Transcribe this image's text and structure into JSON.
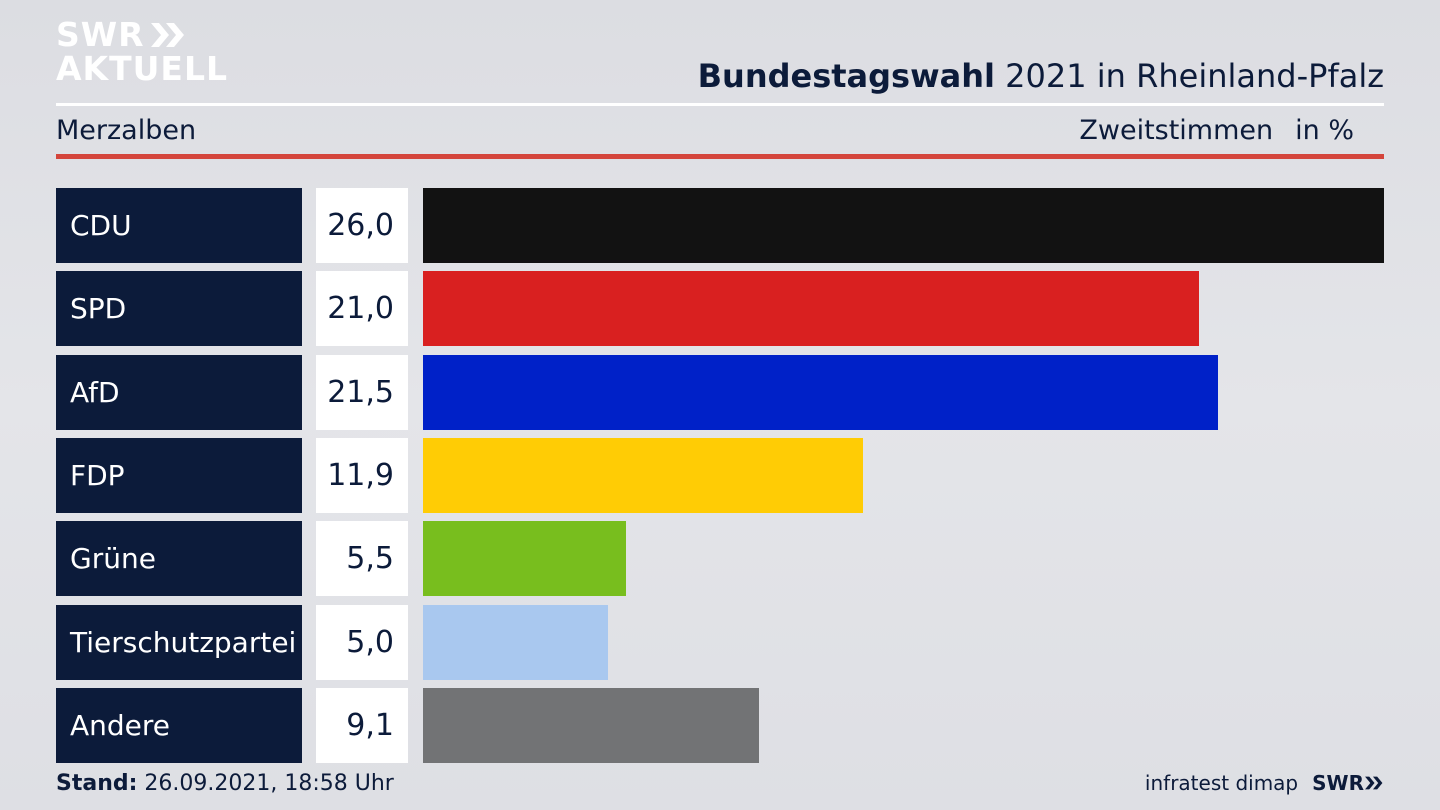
{
  "brand": {
    "line1": "SWR",
    "line2": "AKTUELL"
  },
  "header": {
    "title_bold": "Bundestagswahl",
    "title_rest": " 2021 in Rheinland-Pfalz",
    "subtitle": "Merzalben",
    "measure": "Zweitstimmen",
    "unit": "in %"
  },
  "chart_data": {
    "type": "bar",
    "categories": [
      "CDU",
      "SPD",
      "AfD",
      "FDP",
      "Grüne",
      "Tierschutzpartei",
      "Andere"
    ],
    "values": [
      26.0,
      21.0,
      21.5,
      11.9,
      5.5,
      5.0,
      9.1
    ],
    "value_labels": [
      "26,0",
      "21,0",
      "21,5",
      "11,9",
      "5,5",
      "5,0",
      "9,1"
    ],
    "colors": [
      "#121212",
      "#d92020",
      "#0021c8",
      "#ffcc05",
      "#78be1e",
      "#a9c8ef",
      "#727375"
    ],
    "orientation": "horizontal",
    "xlim": [
      0,
      26.0
    ]
  },
  "footer": {
    "label": "Stand:",
    "timestamp": "26.09.2021, 18:58 Uhr"
  },
  "source": {
    "pollster": "infratest dimap",
    "brand": "SWR"
  }
}
